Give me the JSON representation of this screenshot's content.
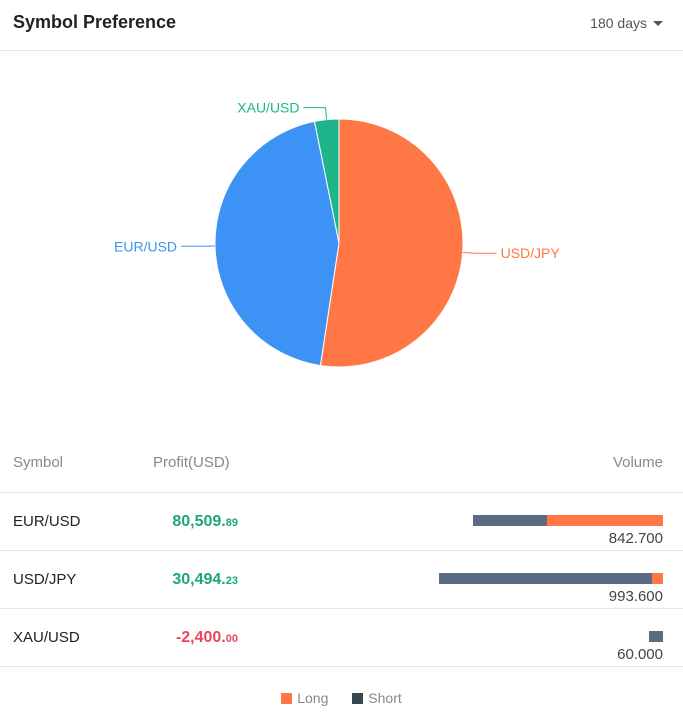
{
  "header": {
    "title": "Symbol Preference",
    "range": "180 days"
  },
  "chart_data": {
    "type": "pie",
    "slices": [
      {
        "label": "USD/JPY",
        "value": 993.6,
        "color": "#ff7744"
      },
      {
        "label": "EUR/USD",
        "value": 842.7,
        "color": "#3d93f5"
      },
      {
        "label": "XAU/USD",
        "value": 60.0,
        "color": "#1eb58a"
      }
    ]
  },
  "table": {
    "headers": {
      "symbol": "Symbol",
      "profit": "Profit(USD)",
      "volume": "Volume"
    },
    "rows": [
      {
        "symbol": "EUR/USD",
        "profit_int": "80,509.",
        "profit_dec": "89",
        "sign": "pos",
        "volume": "842.700",
        "short_share": 0.39,
        "long_share": 0.61
      },
      {
        "symbol": "USD/JPY",
        "profit_int": "30,494.",
        "profit_dec": "23",
        "sign": "pos",
        "volume": "993.600",
        "short_share": 0.95,
        "long_share": 0.05
      },
      {
        "symbol": "XAU/USD",
        "profit_int": "-2,400.",
        "profit_dec": "00",
        "sign": "neg",
        "volume": "60.000",
        "short_share": 1.0,
        "long_share": 0.0
      }
    ]
  },
  "legend": {
    "long": "Long",
    "short": "Short",
    "long_color": "#ff7744",
    "short_color": "#37474f"
  }
}
